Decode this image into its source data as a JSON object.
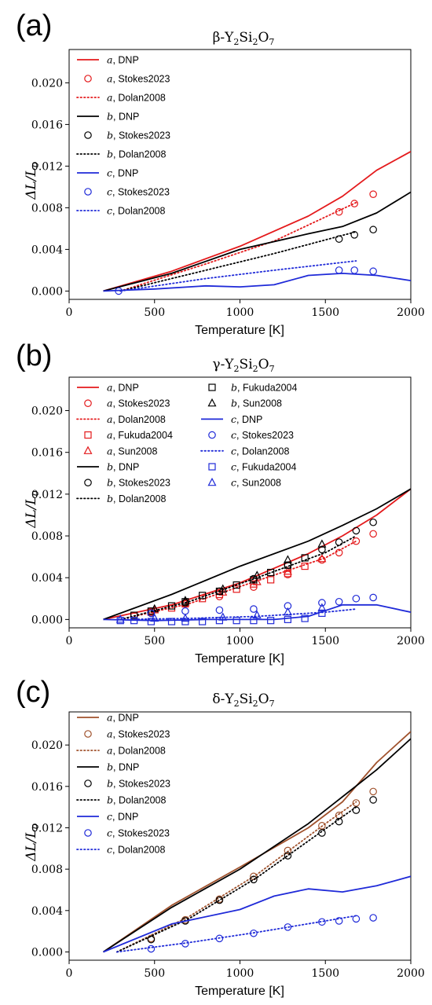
{
  "figure": {
    "panels": [
      {
        "letter": "(a)",
        "title_prefix": "β-Y",
        "title_rest": "Si",
        "title_end": "O",
        "sub1": "2",
        "sub2": "2",
        "sub3": "7"
      },
      {
        "letter": "(b)",
        "title_prefix": "γ-Y",
        "title_rest": "Si",
        "title_end": "O",
        "sub1": "2",
        "sub2": "2",
        "sub3": "7"
      },
      {
        "letter": "(c)",
        "title_prefix": "δ-Y",
        "title_rest": "Si",
        "title_end": "O",
        "sub1": "2",
        "sub2": "2",
        "sub3": "7"
      }
    ],
    "xlabel": "Temperature [K]",
    "ylabel": "ΔL/L",
    "ylabel_sub": "0",
    "colors": {
      "a": "#e41a1c",
      "b": "#000000",
      "c": "#1f2ad8",
      "a_delta": "#a0522d"
    }
  },
  "chart_data": [
    {
      "type": "line",
      "title": "β-Y2Si2O7",
      "xlabel": "Temperature [K]",
      "ylabel": "ΔL/L0",
      "xlim": [
        0,
        2000
      ],
      "ylim": [
        -0.0008,
        0.0232
      ],
      "xticks": [
        "0",
        "500",
        "1000",
        "1500",
        "2000"
      ],
      "yticks": [
        "0.000",
        "0.004",
        "0.008",
        "0.012",
        "0.016",
        "0.020"
      ],
      "grid": false,
      "legend_position": "top-left",
      "series": [
        {
          "name": "a, DNP",
          "var": "a",
          "source": "DNP",
          "style": "solid",
          "color": "#e41a1c",
          "x": [
            200,
            600,
            1000,
            1400,
            1600,
            1800,
            2000
          ],
          "y": [
            0,
            0.0019,
            0.0043,
            0.0072,
            0.0091,
            0.0116,
            0.0134
          ]
        },
        {
          "name": "a, Stokes2023",
          "var": "a",
          "source": "Stokes2023",
          "style": "circle",
          "color": "#e41a1c",
          "x": [
            1580,
            1670,
            1780
          ],
          "y": [
            0.0076,
            0.0084,
            0.0093
          ]
        },
        {
          "name": "a, Dolan2008",
          "var": "a",
          "source": "Dolan2008",
          "style": "dotted",
          "color": "#e41a1c",
          "x": [
            300,
            800,
            1200,
            1680
          ],
          "y": [
            0,
            0.0026,
            0.0048,
            0.0085
          ]
        },
        {
          "name": "b, DNP",
          "var": "b",
          "source": "DNP",
          "style": "solid",
          "color": "#000000",
          "x": [
            200,
            600,
            1000,
            1400,
            1600,
            1800,
            2000
          ],
          "y": [
            0,
            0.0017,
            0.004,
            0.0055,
            0.0062,
            0.0075,
            0.0095
          ]
        },
        {
          "name": "b, Stokes2023",
          "var": "b",
          "source": "Stokes2023",
          "style": "circle",
          "color": "#000000",
          "x": [
            1580,
            1670,
            1780
          ],
          "y": [
            0.005,
            0.0054,
            0.0059
          ]
        },
        {
          "name": "b, Dolan2008",
          "var": "b",
          "source": "Dolan2008",
          "style": "dotted",
          "color": "#000000",
          "x": [
            300,
            800,
            1200,
            1680
          ],
          "y": [
            0,
            0.002,
            0.0036,
            0.0057
          ]
        },
        {
          "name": "c, DNP",
          "var": "c",
          "source": "DNP",
          "style": "solid",
          "color": "#1f2ad8",
          "x": [
            200,
            500,
            800,
            1000,
            1200,
            1400,
            1600,
            1800,
            2000
          ],
          "y": [
            0,
            0.0002,
            0.0005,
            0.0004,
            0.0006,
            0.0015,
            0.0017,
            0.0015,
            0.001
          ]
        },
        {
          "name": "c, Stokes2023",
          "var": "c",
          "source": "Stokes2023",
          "style": "circle",
          "color": "#1f2ad8",
          "x": [
            290,
            1580,
            1670,
            1780
          ],
          "y": [
            0,
            0.002,
            0.002,
            0.0019
          ]
        },
        {
          "name": "c, Dolan2008",
          "var": "c",
          "source": "Dolan2008",
          "style": "dotted",
          "color": "#1f2ad8",
          "x": [
            300,
            800,
            1200,
            1680
          ],
          "y": [
            0,
            0.0012,
            0.002,
            0.0029
          ]
        }
      ]
    },
    {
      "type": "line",
      "title": "γ-Y2Si2O7",
      "xlabel": "Temperature [K]",
      "ylabel": "ΔL/L0",
      "xlim": [
        0,
        2000
      ],
      "ylim": [
        -0.0008,
        0.0232
      ],
      "xticks": [
        "0",
        "500",
        "1000",
        "1500",
        "2000"
      ],
      "yticks": [
        "0.000",
        "0.004",
        "0.008",
        "0.012",
        "0.016",
        "0.020"
      ],
      "grid": false,
      "legend_position": "top-left, two columns",
      "series": [
        {
          "name": "a, DNP",
          "var": "a",
          "source": "DNP",
          "style": "solid",
          "color": "#e41a1c",
          "x": [
            200,
            600,
            1000,
            1400,
            1600,
            1800,
            2000
          ],
          "y": [
            0,
            0.0014,
            0.0035,
            0.0063,
            0.008,
            0.01,
            0.0125
          ]
        },
        {
          "name": "a, Stokes2023",
          "var": "a",
          "source": "Stokes2023",
          "style": "circle",
          "color": "#e41a1c",
          "x": [
            480,
            680,
            880,
            1080,
            1280,
            1480,
            1580,
            1680,
            1780
          ],
          "y": [
            0.0008,
            0.0015,
            0.0022,
            0.0031,
            0.0043,
            0.0057,
            0.0064,
            0.0075,
            0.0082
          ]
        },
        {
          "name": "a, Dolan2008",
          "var": "a",
          "source": "Dolan2008",
          "style": "dotted",
          "color": "#e41a1c",
          "x": [
            300,
            700,
            1100,
            1500,
            1680
          ],
          "y": [
            0,
            0.0015,
            0.0037,
            0.0059,
            0.0075
          ]
        },
        {
          "name": "a, Fukuda2004",
          "var": "a",
          "source": "Fukuda2004",
          "style": "square",
          "color": "#e41a1c",
          "x": [
            380,
            480,
            600,
            680,
            780,
            880,
            980,
            1080,
            1180,
            1280,
            1380
          ],
          "y": [
            0.0003,
            0.0007,
            0.0011,
            0.0015,
            0.002,
            0.0024,
            0.0029,
            0.0034,
            0.0038,
            0.0044,
            0.0051
          ]
        },
        {
          "name": "a, Sun2008",
          "var": "a",
          "source": "Sun2008",
          "style": "triangle",
          "color": "#e41a1c",
          "x": [
            500,
            680,
            900,
            1100,
            1280,
            1480
          ],
          "y": [
            0.0009,
            0.0016,
            0.0026,
            0.0036,
            0.0046,
            0.0058
          ]
        },
        {
          "name": "b, DNP",
          "var": "b",
          "source": "DNP",
          "style": "solid",
          "color": "#000000",
          "x": [
            200,
            600,
            1000,
            1400,
            1600,
            1800,
            2000
          ],
          "y": [
            0,
            0.0024,
            0.0051,
            0.0075,
            0.009,
            0.0106,
            0.0125
          ]
        },
        {
          "name": "b, Stokes2023",
          "var": "b",
          "source": "Stokes2023",
          "style": "circle",
          "color": "#000000",
          "x": [
            480,
            680,
            880,
            1080,
            1280,
            1480,
            1580,
            1680,
            1780
          ],
          "y": [
            0.0006,
            0.0016,
            0.0027,
            0.0039,
            0.0052,
            0.0067,
            0.0074,
            0.0085,
            0.0093
          ]
        },
        {
          "name": "b, Dolan2008",
          "var": "b",
          "source": "Dolan2008",
          "style": "dotted",
          "color": "#000000",
          "x": [
            300,
            700,
            1100,
            1500,
            1680
          ],
          "y": [
            0,
            0.0017,
            0.004,
            0.0064,
            0.008
          ]
        },
        {
          "name": "b, Fukuda2004",
          "var": "b",
          "source": "Fukuda2004",
          "style": "square",
          "color": "#000000",
          "x": [
            380,
            480,
            600,
            680,
            780,
            880,
            980,
            1080,
            1180,
            1280,
            1380
          ],
          "y": [
            0.0004,
            0.0008,
            0.0013,
            0.0017,
            0.0023,
            0.0027,
            0.0033,
            0.0038,
            0.0045,
            0.0052,
            0.0059
          ]
        },
        {
          "name": "b, Sun2008",
          "var": "b",
          "source": "Sun2008",
          "style": "triangle",
          "color": "#000000",
          "x": [
            500,
            680,
            900,
            1100,
            1280,
            1480
          ],
          "y": [
            0.001,
            0.0018,
            0.0029,
            0.0042,
            0.0057,
            0.0072
          ]
        },
        {
          "name": "c, DNP",
          "var": "c",
          "source": "DNP",
          "style": "solid",
          "color": "#1f2ad8",
          "x": [
            200,
            500,
            800,
            1200,
            1400,
            1600,
            1800,
            2000
          ],
          "y": [
            0,
            -0.0001,
            0,
            0,
            0.0003,
            0.0014,
            0.0014,
            0.0007
          ]
        },
        {
          "name": "c, Stokes2023",
          "var": "c",
          "source": "Stokes2023",
          "style": "circle",
          "color": "#1f2ad8",
          "x": [
            480,
            680,
            880,
            1080,
            1280,
            1480,
            1580,
            1680,
            1780
          ],
          "y": [
            0.0006,
            0.0008,
            0.0009,
            0.001,
            0.0013,
            0.0016,
            0.0017,
            0.002,
            0.0021
          ]
        },
        {
          "name": "c, Dolan2008",
          "var": "c",
          "source": "Dolan2008",
          "style": "dotted",
          "color": "#1f2ad8",
          "x": [
            300,
            700,
            1100,
            1500,
            1680
          ],
          "y": [
            0,
            0.0001,
            0.0003,
            0.0007,
            0.001
          ]
        },
        {
          "name": "c, Fukuda2004",
          "var": "c",
          "source": "Fukuda2004",
          "style": "square",
          "color": "#1f2ad8",
          "x": [
            300,
            380,
            480,
            600,
            680,
            780,
            880,
            980,
            1080,
            1180,
            1280,
            1380,
            1480
          ],
          "y": [
            -0.0001,
            -0.0001,
            -0.0002,
            -0.0002,
            -0.0002,
            -0.0002,
            -0.0001,
            -0.0001,
            -0.0001,
            -0.0001,
            0,
            0.0001,
            0.0006
          ]
        },
        {
          "name": "c, Sun2008",
          "var": "c",
          "source": "Sun2008",
          "style": "triangle",
          "color": "#1f2ad8",
          "x": [
            300,
            500,
            680,
            900,
            1100,
            1280,
            1480
          ],
          "y": [
            0,
            0.0001,
            0.0001,
            0.0002,
            0.0004,
            0.0007,
            0.0011
          ]
        }
      ]
    },
    {
      "type": "line",
      "title": "δ-Y2Si2O7",
      "xlabel": "Temperature [K]",
      "ylabel": "ΔL/L0",
      "xlim": [
        0,
        2000
      ],
      "ylim": [
        -0.0008,
        0.0232
      ],
      "xticks": [
        "0",
        "500",
        "1000",
        "1500",
        "2000"
      ],
      "yticks": [
        "0.000",
        "0.004",
        "0.008",
        "0.012",
        "0.016",
        "0.020"
      ],
      "grid": false,
      "legend_position": "top-left",
      "series": [
        {
          "name": "a, DNP",
          "var": "a",
          "source": "DNP",
          "style": "solid",
          "color": "#a0522d",
          "x": [
            200,
            600,
            1000,
            1400,
            1600,
            1800,
            2000
          ],
          "y": [
            0,
            0.0045,
            0.0082,
            0.012,
            0.0145,
            0.0183,
            0.0213
          ]
        },
        {
          "name": "a, Stokes2023",
          "var": "a",
          "source": "Stokes2023",
          "style": "circle",
          "color": "#a0522d",
          "x": [
            480,
            680,
            880,
            1080,
            1280,
            1480,
            1580,
            1680,
            1780
          ],
          "y": [
            0.0013,
            0.0031,
            0.0051,
            0.0073,
            0.0098,
            0.0122,
            0.0132,
            0.0144,
            0.0155
          ]
        },
        {
          "name": "a, Dolan2008",
          "var": "a",
          "source": "Dolan2008",
          "style": "dotted",
          "color": "#a0522d",
          "x": [
            280,
            700,
            1100,
            1500,
            1680
          ],
          "y": [
            0,
            0.0034,
            0.0075,
            0.0124,
            0.0145
          ]
        },
        {
          "name": "b, DNP",
          "var": "b",
          "source": "DNP",
          "style": "solid",
          "color": "#000000",
          "x": [
            200,
            600,
            1000,
            1400,
            1600,
            1800,
            2000
          ],
          "y": [
            0,
            0.0043,
            0.008,
            0.0124,
            0.015,
            0.0176,
            0.0206
          ]
        },
        {
          "name": "b, Stokes2023",
          "var": "b",
          "source": "Stokes2023",
          "style": "circle",
          "color": "#000000",
          "x": [
            480,
            680,
            880,
            1080,
            1280,
            1480,
            1580,
            1680,
            1780
          ],
          "y": [
            0.0012,
            0.003,
            0.005,
            0.007,
            0.0093,
            0.0115,
            0.0126,
            0.0137,
            0.0147
          ]
        },
        {
          "name": "b, Dolan2008",
          "var": "b",
          "source": "Dolan2008",
          "style": "dotted",
          "color": "#000000",
          "x": [
            280,
            700,
            1100,
            1500,
            1680
          ],
          "y": [
            0,
            0.0032,
            0.0072,
            0.0119,
            0.014
          ]
        },
        {
          "name": "c, DNP",
          "var": "c",
          "source": "DNP",
          "style": "solid",
          "color": "#1f2ad8",
          "x": [
            200,
            600,
            1000,
            1200,
            1400,
            1600,
            1800,
            2000
          ],
          "y": [
            0,
            0.0027,
            0.0041,
            0.0054,
            0.0061,
            0.0058,
            0.0064,
            0.0073
          ]
        },
        {
          "name": "c, Stokes2023",
          "var": "c",
          "source": "Stokes2023",
          "style": "circle",
          "color": "#1f2ad8",
          "x": [
            480,
            680,
            880,
            1080,
            1280,
            1480,
            1580,
            1680,
            1780
          ],
          "y": [
            0.0003,
            0.0008,
            0.0013,
            0.0018,
            0.0024,
            0.0029,
            0.003,
            0.0032,
            0.0033
          ]
        },
        {
          "name": "c, Dolan2008",
          "var": "c",
          "source": "Dolan2008",
          "style": "dotted",
          "color": "#1f2ad8",
          "x": [
            280,
            700,
            1100,
            1500,
            1680
          ],
          "y": [
            0,
            0.0009,
            0.0019,
            0.003,
            0.0035
          ]
        }
      ]
    }
  ]
}
